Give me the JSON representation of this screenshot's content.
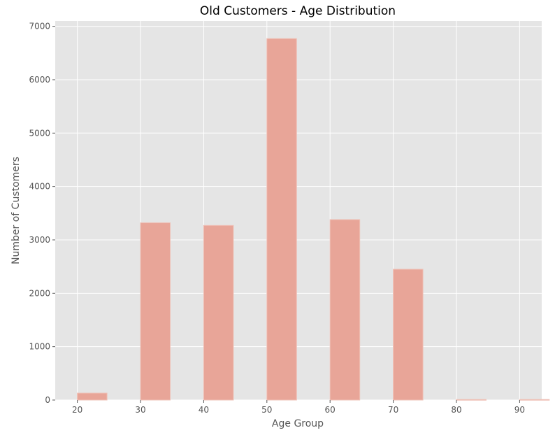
{
  "chart_data": {
    "type": "bar",
    "title": "Old Customers - Age Distribution",
    "xlabel": "Age Group",
    "ylabel": "Number of Customers",
    "xlim": [
      16.5,
      93.5
    ],
    "ylim": [
      0,
      7100
    ],
    "xticks": [
      20,
      30,
      40,
      50,
      60,
      70,
      80,
      90
    ],
    "yticks": [
      0,
      1000,
      2000,
      3000,
      4000,
      5000,
      6000,
      7000
    ],
    "bin_width": 4.7,
    "bins": [
      {
        "x": 20,
        "value": 130
      },
      {
        "x": 30,
        "value": 3320
      },
      {
        "x": 40,
        "value": 3270
      },
      {
        "x": 50,
        "value": 6770
      },
      {
        "x": 60,
        "value": 3380
      },
      {
        "x": 70,
        "value": 2450
      },
      {
        "x": 80,
        "value": 10
      },
      {
        "x": 90,
        "value": 10
      }
    ],
    "grid": true
  },
  "colors": {
    "plot_background": "#e5e5e5",
    "grid": "#ffffff",
    "bar": "#e8a598",
    "bar_edge": "#efc0b6",
    "tick_text": "#555555",
    "title_text": "#000000"
  }
}
